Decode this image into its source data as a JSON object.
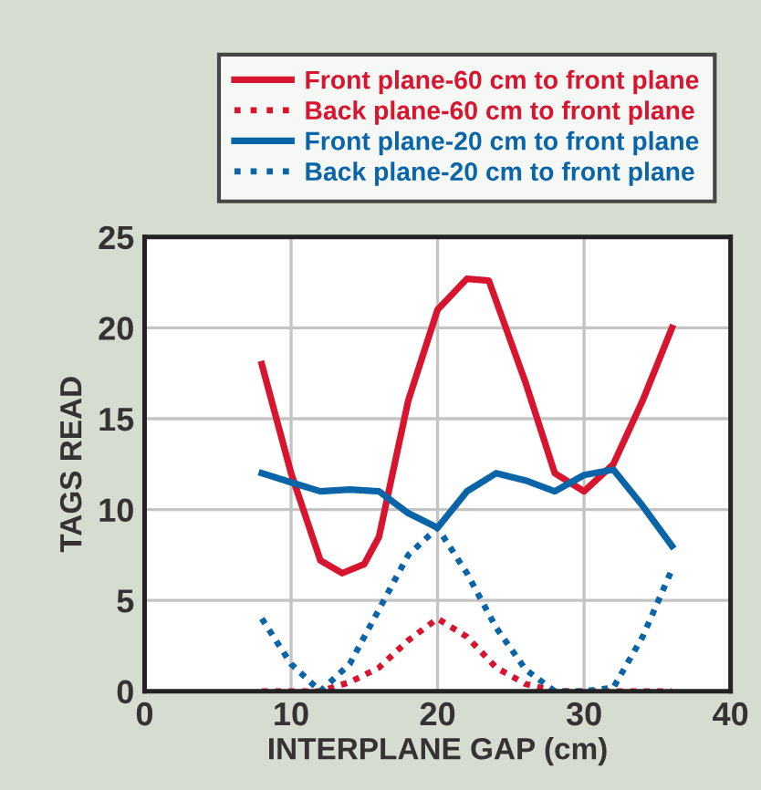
{
  "chart_data": {
    "type": "line",
    "xlabel": "INTERPLANE GAP (cm)",
    "ylabel": "TAGS READ",
    "xlim": [
      0,
      40
    ],
    "xticks": [
      0,
      10,
      20,
      30,
      40
    ],
    "ylim": [
      0,
      25
    ],
    "yticks": [
      0,
      5,
      10,
      15,
      20,
      25
    ],
    "grid": true,
    "legend": "top",
    "marker": "none",
    "series": [
      {
        "name": "Front plane-60 cm to front plane",
        "color": "#d7152f",
        "line_style": "solid",
        "x": [
          8,
          10,
          12,
          13.5,
          15,
          16,
          18,
          20,
          22,
          23.5,
          26,
          28,
          30,
          32,
          34,
          36
        ],
        "values": [
          18,
          12,
          7.2,
          6.5,
          7,
          8.5,
          16,
          21,
          22.7,
          22.6,
          17,
          12,
          11,
          12.5,
          16,
          20
        ]
      },
      {
        "name": "Back plane-60 cm to front plane",
        "color": "#d7152f",
        "line_style": "dotted",
        "x": [
          8,
          12,
          14,
          16,
          18,
          20,
          22,
          24,
          26,
          28,
          32,
          36
        ],
        "values": [
          0,
          0,
          0.5,
          1.3,
          2.8,
          4,
          3,
          1.3,
          0.4,
          0,
          0,
          0
        ]
      },
      {
        "name": "Front plane-20 cm to front plane",
        "color": "#0a64a8",
        "line_style": "solid",
        "x": [
          8,
          10,
          12,
          14,
          16,
          18,
          20,
          22,
          24,
          26,
          28,
          30,
          32,
          34,
          36
        ],
        "values": [
          12,
          11.5,
          11,
          11.1,
          11,
          9.8,
          9,
          11,
          12,
          11.6,
          11,
          11.9,
          12.2,
          10.2,
          8
        ]
      },
      {
        "name": "Back plane-20 cm to front plane",
        "color": "#0a64a8",
        "line_style": "dotted",
        "x": [
          8,
          10,
          12,
          14,
          16,
          18,
          20,
          22,
          24,
          26,
          28,
          30,
          32,
          34,
          36
        ],
        "values": [
          4,
          1.5,
          0,
          1.5,
          4.5,
          7.5,
          9,
          6.5,
          3.5,
          1.2,
          0,
          0,
          0.2,
          3,
          6.7
        ]
      }
    ]
  }
}
